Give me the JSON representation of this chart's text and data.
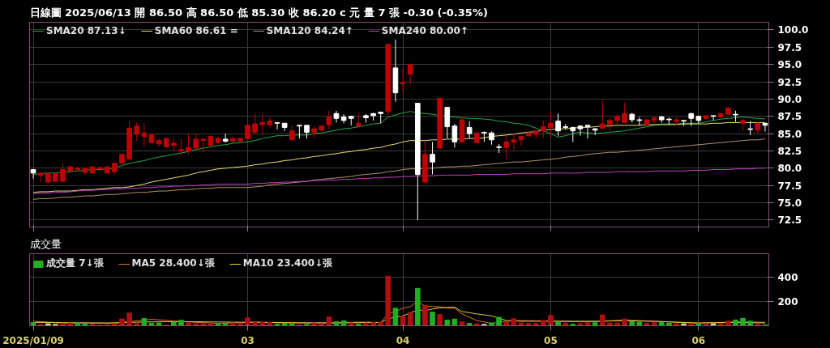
{
  "chart_data": [
    {
      "type": "candlestick",
      "title": "日線圖  2025/06/13  開 86.50  高 86.50  低 85.30  收 86.20  c 元  量 7 張  -0.30 (-0.35%)",
      "categories": [
        "2025/01/09",
        null,
        null,
        null,
        null,
        null,
        null,
        null,
        null,
        null,
        null,
        null,
        null,
        null,
        null,
        null,
        null,
        null,
        null,
        null,
        null,
        null,
        null,
        null,
        null,
        null,
        null,
        null,
        null,
        "03",
        null,
        null,
        null,
        null,
        null,
        null,
        null,
        null,
        null,
        null,
        null,
        null,
        null,
        null,
        null,
        null,
        null,
        null,
        null,
        null,
        "04",
        null,
        null,
        null,
        null,
        null,
        null,
        null,
        null,
        null,
        null,
        null,
        null,
        null,
        null,
        null,
        null,
        null,
        null,
        null,
        "05",
        null,
        null,
        null,
        null,
        null,
        null,
        null,
        null,
        null,
        null,
        null,
        null,
        null,
        null,
        null,
        null,
        null,
        null,
        null,
        "06",
        null,
        null,
        null,
        null,
        null,
        null,
        null,
        null,
        null
      ],
      "ylim": [
        71.5,
        101.1
      ],
      "yticks": [
        {
          "value": 72.5,
          "label": "72.5"
        },
        {
          "value": 75,
          "label": "75.0"
        },
        {
          "value": 77.5,
          "label": "77.5"
        },
        {
          "value": 80,
          "label": "80.0"
        },
        {
          "value": 82.5,
          "label": "82.5"
        },
        {
          "value": 85,
          "label": "85.0"
        },
        {
          "value": 87.5,
          "label": "87.5"
        },
        {
          "value": 90,
          "label": "90.0"
        },
        {
          "value": 92.5,
          "label": "92.5"
        },
        {
          "value": 95,
          "label": "95.0"
        },
        {
          "value": 97.5,
          "label": "97.5"
        },
        {
          "value": 100,
          "label": "100.0"
        }
      ],
      "tick_labels": "y",
      "grid": true,
      "legend": "top left",
      "series": [
        {
          "ohlc": [
            [
              79.8,
              79.8,
              78.5,
              79.3
            ],
            [
              79.0,
              79.4,
              78.0,
              79.3
            ],
            [
              78.0,
              79.3,
              77.8,
              79.2
            ],
            [
              78.1,
              79.3,
              78.0,
              79.2
            ],
            [
              78.1,
              80.7,
              78.0,
              79.8
            ],
            [
              79.6,
              80.4,
              79.3,
              80.2
            ],
            [
              79.8,
              80.2,
              79.6,
              80.0
            ],
            [
              79.4,
              80.1,
              79.0,
              80.0
            ],
            [
              79.3,
              80.3,
              79.2,
              80.2
            ],
            [
              79.9,
              80.2,
              79.5,
              80.1
            ],
            [
              79.3,
              80.3,
              79.2,
              80.2
            ],
            [
              79.5,
              80.8,
              79.0,
              80.7
            ],
            [
              80.7,
              82.0,
              80.6,
              82.0
            ],
            [
              81.3,
              86.8,
              81.2,
              85.8
            ],
            [
              84.9,
              86.6,
              83.9,
              86.1
            ],
            [
              84.6,
              86.5,
              83.1,
              85.1
            ],
            [
              83.7,
              85.0,
              83.6,
              84.8
            ],
            [
              83.5,
              84.4,
              83.1,
              84.0
            ],
            [
              83.1,
              84.4,
              83.0,
              84.3
            ],
            [
              83.3,
              84.4,
              82.4,
              83.6
            ],
            [
              82.5,
              84.2,
              81.9,
              82.7
            ],
            [
              82.5,
              85.0,
              82.0,
              83.0
            ],
            [
              82.9,
              85.0,
              82.9,
              84.2
            ],
            [
              84.0,
              84.3,
              82.3,
              84.2
            ],
            [
              83.3,
              84.7,
              83.2,
              84.6
            ],
            [
              83.7,
              84.6,
              83.5,
              84.3
            ],
            [
              84.2,
              85.0,
              83.7,
              83.9
            ],
            [
              83.9,
              84.6,
              83.7,
              84.25
            ],
            [
              83.9,
              84.4,
              83.7,
              84.3
            ],
            [
              84.25,
              86.3,
              84.1,
              86.2
            ],
            [
              85.2,
              87.9,
              85.0,
              86.4
            ],
            [
              86.3,
              87.9,
              85.0,
              86.6
            ],
            [
              86.3,
              87.3,
              85.9,
              86.8
            ],
            [
              86.6,
              86.6,
              85.6,
              86.5
            ],
            [
              86.5,
              86.5,
              85.4,
              85.9
            ],
            [
              84.1,
              86.2,
              84.1,
              85.4
            ],
            [
              86.2,
              86.2,
              84.3,
              86.1
            ],
            [
              86.2,
              86.2,
              84.3,
              85.2
            ],
            [
              85.2,
              86.1,
              84.4,
              85.7
            ],
            [
              85.5,
              86.1,
              85.3,
              86.1
            ],
            [
              86.3,
              88.3,
              85.6,
              87.4
            ],
            [
              87.9,
              88.3,
              86.6,
              87.2
            ],
            [
              87.4,
              87.8,
              86.5,
              86.9
            ],
            [
              87.5,
              87.5,
              86.2,
              87.2
            ],
            [
              86.1,
              87.8,
              86.1,
              86.5
            ],
            [
              87.6,
              87.8,
              86.6,
              87.3
            ],
            [
              87.9,
              88.0,
              86.9,
              87.6
            ],
            [
              88.1,
              88.1,
              86.5,
              87.9
            ],
            [
              88.2,
              97.9,
              87.7,
              97.9
            ],
            [
              94.5,
              98.6,
              89.6,
              90.9
            ],
            [
              92.2,
              94.4,
              90.8,
              92.4
            ],
            [
              93.6,
              95.1,
              92.1,
              95.0
            ],
            [
              89.4,
              89.4,
              72.5,
              79.1
            ],
            [
              78.0,
              84.0,
              77.8,
              82.0
            ],
            [
              82.0,
              83.8,
              79.1,
              80.9
            ],
            [
              82.9,
              90.1,
              82.9,
              90.1
            ],
            [
              88.8,
              88.8,
              84.3,
              86.0
            ],
            [
              86.1,
              86.4,
              83.0,
              83.8
            ],
            [
              83.8,
              87.3,
              83.8,
              87.0
            ],
            [
              85.9,
              86.8,
              84.3,
              85.0
            ],
            [
              83.7,
              85.2,
              83.7,
              85.1
            ],
            [
              85.2,
              85.3,
              83.8,
              85.1
            ],
            [
              85.1,
              85.3,
              83.4,
              84.1
            ],
            [
              83.1,
              83.5,
              82.2,
              83.0
            ],
            [
              83.0,
              84.8,
              81.3,
              83.8
            ],
            [
              83.8,
              85.0,
              82.7,
              84.1
            ],
            [
              84.1,
              84.7,
              83.3,
              84.6
            ],
            [
              84.7,
              85.2,
              84.5,
              85.1
            ],
            [
              84.9,
              85.5,
              84.3,
              85.4
            ],
            [
              85.4,
              86.9,
              84.4,
              86.0
            ],
            [
              85.9,
              88.2,
              84.4,
              86.5
            ],
            [
              86.8,
              87.9,
              84.7,
              85.4
            ],
            [
              86.0,
              86.4,
              85.6,
              85.9
            ],
            [
              85.9,
              86.0,
              83.8,
              85.4
            ],
            [
              86.1,
              86.2,
              84.7,
              85.7
            ],
            [
              86.2,
              86.2,
              84.3,
              86.0
            ],
            [
              85.7,
              85.8,
              84.8,
              85.5
            ],
            [
              85.8,
              89.8,
              85.6,
              86.4
            ],
            [
              86.3,
              87.2,
              85.4,
              86.9
            ],
            [
              86.9,
              87.8,
              86.3,
              87.5
            ],
            [
              86.6,
              89.5,
              86.5,
              87.9
            ],
            [
              87.8,
              88.0,
              86.6,
              87.0
            ],
            [
              87.0,
              87.4,
              86.2,
              86.9
            ],
            [
              86.3,
              87.1,
              86.2,
              87.0
            ],
            [
              86.9,
              87.4,
              86.4,
              87.3
            ],
            [
              87.4,
              87.6,
              86.6,
              87.0
            ],
            [
              87.1,
              87.3,
              86.3,
              87.0
            ],
            [
              86.8,
              87.3,
              86.2,
              87.0
            ],
            [
              86.9,
              86.9,
              86.1,
              86.8
            ],
            [
              87.9,
              88.0,
              86.1,
              87.2
            ],
            [
              87.5,
              87.6,
              86.5,
              86.9
            ],
            [
              87.2,
              87.7,
              87.0,
              87.6
            ],
            [
              87.6,
              87.6,
              86.9,
              87.5
            ],
            [
              87.4,
              88.0,
              87.2,
              87.9
            ],
            [
              87.8,
              88.8,
              87.7,
              88.7
            ],
            [
              87.8,
              88.3,
              86.7,
              87.7
            ],
            [
              86.5,
              87.2,
              85.4,
              86.9
            ],
            [
              85.7,
              86.8,
              84.8,
              85.6
            ],
            [
              85.5,
              86.6,
              85.0,
              86.5
            ],
            [
              86.5,
              86.5,
              85.3,
              86.2
            ]
          ],
          "colors": [
            "#ffffff",
            "#c00000",
            "#c00000",
            "#c00000",
            "#c00000",
            "#c00000",
            "#c00000",
            "#c00000",
            "#c00000",
            "#c00000",
            "#c00000",
            "#c00000",
            "#c00000",
            "#c00000",
            "#c00000",
            "#c00000",
            "#c00000",
            "#c00000",
            "#c00000",
            "#c00000",
            "#c00000",
            "#c00000",
            "#c00000",
            "#c00000",
            "#c00000",
            "#c00000",
            "#ffffff",
            "#c00000",
            "#c00000",
            "#c00000",
            "#c00000",
            "#c00000",
            "#c00000",
            "#ffffff",
            "#ffffff",
            "#c00000",
            "#ffffff",
            "#ffffff",
            "#c00000",
            "#c00000",
            "#c00000",
            "#ffffff",
            "#ffffff",
            "#ffffff",
            "#c00000",
            "#ffffff",
            "#ffffff",
            "#ffffff",
            "#c00000",
            "#ffffff",
            "#c00000",
            "#c00000",
            "#ffffff",
            "#c00000",
            "#ffffff",
            "#c00000",
            "#ffffff",
            "#ffffff",
            "#c00000",
            "#ffffff",
            "#c00000",
            "#ffffff",
            "#ffffff",
            "#ffffff",
            "#c00000",
            "#c00000",
            "#c00000",
            "#c00000",
            "#c00000",
            "#c00000",
            "#c00000",
            "#ffffff",
            "#ffffff",
            "#ffffff",
            "#ffffff",
            "#ffffff",
            "#ffffff",
            "#c00000",
            "#c00000",
            "#c00000",
            "#c00000",
            "#ffffff",
            "#ffffff",
            "#c00000",
            "#c00000",
            "#ffffff",
            "#ffffff",
            "#c00000",
            "#ffffff",
            "#ffffff",
            "#ffffff",
            "#c00000",
            "#ffffff",
            "#c00000",
            "#c00000",
            "#ffffff",
            "#c00000",
            "#ffffff",
            "#c00000",
            "#ffffff"
          ]
        },
        {
          "type": "line",
          "name": "SMA20 87.13↓",
          "color": "#22a84a",
          "values": [
            79.1,
            79.2,
            79.3,
            79.3,
            79.4,
            79.5,
            79.6,
            79.7,
            79.8,
            79.8,
            79.9,
            80.0,
            80.4,
            80.7,
            80.9,
            81.1,
            81.4,
            81.6,
            81.8,
            82.0,
            82.2,
            82.4,
            82.7,
            82.9,
            83.1,
            83.3,
            83.4,
            83.6,
            83.7,
            83.8,
            84.0,
            84.3,
            84.5,
            84.7,
            84.7,
            84.8,
            84.8,
            84.8,
            85.0,
            85.1,
            85.3,
            85.5,
            85.7,
            85.8,
            86.0,
            86.2,
            86.4,
            86.5,
            87.4,
            87.7,
            88.0,
            88.2,
            88.0,
            87.9,
            87.8,
            87.6,
            87.5,
            87.4,
            87.3,
            87.2,
            87.2,
            87.1,
            87.0,
            86.8,
            86.7,
            86.5,
            86.4,
            86.2,
            85.8,
            85.4,
            85.0,
            84.5,
            84.7,
            85.0,
            85.2,
            85.1,
            85.0,
            85.1,
            85.2,
            85.3,
            85.4,
            85.6,
            85.8,
            86.0,
            86.2,
            86.4,
            86.4,
            86.4,
            86.5,
            86.5,
            86.5,
            86.7,
            86.9,
            87.1,
            87.2,
            87.3,
            87.4,
            87.3,
            87.2,
            87.13
          ]
        },
        {
          "type": "line",
          "name": "SMA60 86.61 =",
          "color": "#e8e070",
          "values": [
            76.5,
            76.6,
            76.6,
            76.7,
            76.7,
            76.7,
            76.8,
            76.9,
            76.9,
            77.0,
            77.1,
            77.2,
            77.2,
            77.3,
            77.5,
            77.7,
            78.0,
            78.2,
            78.4,
            78.6,
            78.8,
            79.0,
            79.3,
            79.5,
            79.7,
            79.9,
            80.0,
            80.1,
            80.2,
            80.3,
            80.5,
            80.6,
            80.8,
            80.9,
            81.1,
            81.2,
            81.4,
            81.5,
            81.7,
            81.8,
            82.0,
            82.1,
            82.3,
            82.4,
            82.6,
            82.7,
            82.9,
            83.0,
            83.3,
            83.5,
            83.8,
            84.0,
            84.0,
            84.0,
            84.1,
            84.1,
            84.2,
            84.2,
            84.2,
            84.3,
            84.3,
            84.4,
            84.6,
            84.7,
            84.8,
            84.9,
            85.1,
            85.2,
            85.3,
            85.5,
            85.6,
            85.7,
            85.7,
            85.8,
            85.9,
            85.9,
            86.0,
            86.1,
            86.1,
            86.2,
            86.2,
            86.2,
            86.2,
            86.3,
            86.3,
            86.3,
            86.3,
            86.3,
            86.4,
            86.4,
            86.4,
            86.4,
            86.5,
            86.5,
            86.6,
            86.6,
            86.6,
            86.6,
            86.6,
            86.61
          ]
        },
        {
          "type": "line",
          "name": "SMA120 84.24↑",
          "color": "#b09070",
          "values": [
            75.5,
            75.6,
            75.6,
            75.7,
            75.8,
            75.8,
            75.9,
            76.0,
            76.0,
            76.1,
            76.2,
            76.2,
            76.3,
            76.4,
            76.5,
            76.5,
            76.6,
            76.7,
            76.7,
            76.8,
            76.9,
            76.9,
            77.0,
            77.1,
            77.1,
            77.2,
            77.2,
            77.2,
            77.2,
            77.2,
            77.3,
            77.4,
            77.6,
            77.7,
            77.8,
            77.9,
            78.0,
            78.1,
            78.3,
            78.4,
            78.5,
            78.6,
            78.7,
            78.8,
            79.0,
            79.1,
            79.2,
            79.3,
            79.5,
            79.6,
            79.8,
            79.9,
            79.9,
            80.0,
            80.0,
            80.1,
            80.2,
            80.2,
            80.3,
            80.3,
            80.4,
            80.5,
            80.6,
            80.7,
            80.8,
            80.9,
            80.9,
            81.0,
            81.1,
            81.2,
            81.3,
            81.4,
            81.6,
            81.7,
            81.8,
            82.0,
            82.1,
            82.2,
            82.3,
            82.3,
            82.4,
            82.5,
            82.6,
            82.7,
            82.8,
            82.9,
            83.0,
            83.1,
            83.2,
            83.3,
            83.4,
            83.5,
            83.6,
            83.7,
            83.8,
            83.9,
            84.0,
            84.1,
            84.1,
            84.24
          ]
        },
        {
          "type": "line",
          "name": "SMA240 80.00↑",
          "color": "#c040c0",
          "values": [
            76.3,
            76.4,
            76.4,
            76.5,
            76.5,
            76.6,
            76.7,
            76.8,
            76.8,
            76.9,
            76.9,
            77.0,
            77.0,
            77.1,
            77.1,
            77.2,
            77.2,
            77.3,
            77.3,
            77.4,
            77.4,
            77.5,
            77.5,
            77.6,
            77.6,
            77.7,
            77.7,
            77.7,
            77.7,
            77.7,
            77.8,
            77.8,
            77.9,
            77.9,
            78.0,
            78.0,
            78.1,
            78.1,
            78.2,
            78.2,
            78.3,
            78.3,
            78.4,
            78.4,
            78.5,
            78.5,
            78.6,
            78.6,
            78.7,
            78.7,
            78.8,
            78.8,
            78.9,
            78.9,
            78.9,
            79.0,
            79.0,
            79.0,
            79.0,
            79.0,
            79.1,
            79.1,
            79.1,
            79.1,
            79.1,
            79.2,
            79.2,
            79.2,
            79.2,
            79.2,
            79.3,
            79.3,
            79.3,
            79.3,
            79.3,
            79.4,
            79.4,
            79.4,
            79.4,
            79.5,
            79.5,
            79.5,
            79.5,
            79.5,
            79.6,
            79.6,
            79.6,
            79.6,
            79.6,
            79.7,
            79.7,
            79.7,
            79.8,
            79.8,
            79.8,
            79.9,
            79.9,
            79.9,
            80.0,
            80.0
          ]
        }
      ]
    },
    {
      "type": "bar",
      "title": "成交量",
      "categories": [
        "2025/01/09",
        null,
        null,
        null,
        null,
        null,
        null,
        null,
        null,
        null,
        null,
        null,
        null,
        null,
        null,
        null,
        null,
        null,
        null,
        null,
        null,
        null,
        null,
        null,
        null,
        null,
        null,
        null,
        null,
        "03",
        null,
        null,
        null,
        null,
        null,
        null,
        null,
        null,
        null,
        null,
        null,
        null,
        null,
        null,
        null,
        null,
        null,
        null,
        null,
        null,
        "04",
        null,
        null,
        null,
        null,
        null,
        null,
        null,
        null,
        null,
        null,
        null,
        null,
        null,
        null,
        null,
        null,
        null,
        null,
        null,
        "05",
        null,
        null,
        null,
        null,
        null,
        null,
        null,
        null,
        null,
        null,
        null,
        null,
        null,
        null,
        null,
        null,
        null,
        null,
        null,
        "06",
        null,
        null,
        null,
        null,
        null,
        null,
        null,
        null,
        null
      ],
      "ylim": [
        0,
        590
      ],
      "yticks": [
        200,
        400
      ],
      "grid": true,
      "legend": "top left",
      "series": [
        {
          "name": "成交量 7↓張",
          "values": [
            27,
            11,
            16,
            11,
            19,
            22,
            25,
            19,
            11,
            6,
            9,
            16,
            56,
            105,
            22,
            59,
            22,
            23,
            6,
            30,
            45,
            25,
            17,
            17,
            20,
            19,
            17,
            23,
            22,
            64,
            27,
            30,
            27,
            14,
            19,
            16,
            8,
            11,
            22,
            16,
            72,
            34,
            41,
            23,
            14,
            22,
            25,
            30,
            406,
            144,
            78,
            109,
            306,
            167,
            112,
            92,
            47,
            55,
            33,
            19,
            16,
            11,
            23,
            69,
            34,
            58,
            23,
            19,
            20,
            44,
            84,
            33,
            22,
            14,
            17,
            25,
            25,
            89,
            23,
            23,
            55,
            33,
            30,
            20,
            28,
            27,
            23,
            17,
            16,
            17,
            19,
            16,
            16,
            17,
            38,
            47,
            61,
            38,
            17,
            7
          ],
          "colors": [
            "#20b020",
            "#b01010",
            "#d0d0d0",
            "#d0d0d0",
            "#b01010",
            "#b01010",
            "#20b020",
            "#20b020",
            "#b01010",
            "#b01010",
            "#b01010",
            "#b01010",
            "#b01010",
            "#b01010",
            "#b01010",
            "#20b020",
            "#20b020",
            "#20b020",
            "#b01010",
            "#20b020",
            "#20b020",
            "#b01010",
            "#b01010",
            "#b01010",
            "#b01010",
            "#20b020",
            "#20b020",
            "#b01010",
            "#b01010",
            "#b01010",
            "#b01010",
            "#b01010",
            "#b01010",
            "#20b020",
            "#20b020",
            "#20b020",
            "#b01010",
            "#20b020",
            "#b01010",
            "#b01010",
            "#b01010",
            "#20b020",
            "#20b020",
            "#b01010",
            "#20b020",
            "#b01010",
            "#b01010",
            "#b01010",
            "#b01010",
            "#20b020",
            "#b01010",
            "#b01010",
            "#20b020",
            "#b01010",
            "#20b020",
            "#b01010",
            "#20b020",
            "#20b020",
            "#b01010",
            "#20b020",
            "#b01010",
            "#d0d0d0",
            "#20b020",
            "#20b020",
            "#b01010",
            "#b01010",
            "#b01010",
            "#b01010",
            "#b01010",
            "#b01010",
            "#b01010",
            "#20b020",
            "#b01010",
            "#20b020",
            "#b01010",
            "#b01010",
            "#20b020",
            "#b01010",
            "#b01010",
            "#b01010",
            "#b01010",
            "#20b020",
            "#20b020",
            "#b01010",
            "#b01010",
            "#20b020",
            "#20b020",
            "#b01010",
            "#d0d0d0",
            "#b01010",
            "#20b020",
            "#b01010",
            "#d0d0d0",
            "#b01010",
            "#b01010",
            "#20b020",
            "#20b020",
            "#20b020",
            "#b01010",
            "#20b020"
          ]
        },
        {
          "type": "line",
          "name": "MA5 28.400↓張",
          "color": "#e07030",
          "values": [
            37,
            33,
            30,
            26,
            22,
            22,
            22,
            22,
            22,
            22,
            22,
            22,
            28,
            34,
            40,
            47,
            53,
            48,
            44,
            39,
            34,
            31,
            28,
            25,
            22,
            19,
            21,
            24,
            26,
            29,
            31,
            29,
            27,
            26,
            24,
            22,
            23,
            23,
            24,
            24,
            25,
            26,
            27,
            28,
            29,
            30,
            28,
            25,
            97,
            116,
            144,
            156,
            203,
            159,
            157,
            155,
            144,
            144,
            97,
            70,
            42,
            31,
            19,
            28,
            37,
            40,
            42,
            41,
            40,
            38,
            37,
            36,
            35,
            33,
            32,
            31,
            34,
            37,
            41,
            44,
            47,
            44,
            42,
            39,
            37,
            34,
            32,
            29,
            27,
            24,
            22,
            24,
            26,
            27,
            29,
            31,
            30,
            30,
            29,
            28.4
          ]
        },
        {
          "type": "line",
          "name": "MA10 23.400↓張",
          "color": "#e0d040",
          "values": [
            27,
            27,
            26,
            26,
            25,
            25,
            24,
            24,
            23,
            23,
            22,
            24,
            26,
            27,
            29,
            31,
            32,
            32,
            33,
            33,
            34,
            33,
            33,
            32,
            31,
            31,
            30,
            29,
            29,
            28,
            27,
            27,
            26,
            26,
            25,
            25,
            24,
            24,
            23,
            23,
            22,
            23,
            23,
            24,
            25,
            26,
            26,
            27,
            58,
            70,
            81,
            105,
            128,
            125,
            136,
            147,
            150,
            152,
            116,
            107,
            97,
            89,
            81,
            62,
            42,
            40,
            37,
            37,
            37,
            37,
            37,
            37,
            37,
            37,
            37,
            37,
            37,
            37,
            39,
            40,
            42,
            40,
            39,
            37,
            36,
            34,
            32,
            29,
            27,
            24,
            22,
            23,
            24,
            25,
            26,
            27,
            26,
            25,
            24,
            23.4
          ]
        }
      ]
    }
  ]
}
